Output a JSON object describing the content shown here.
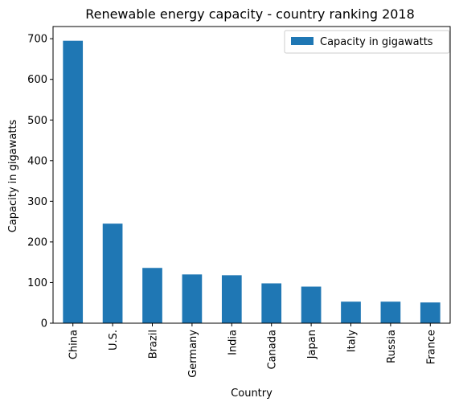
{
  "chart_data": {
    "type": "bar",
    "title": "Renewable energy capacity - country ranking 2018",
    "xlabel": "Country",
    "ylabel": "Capacity in gigawatts",
    "categories": [
      "China",
      "U.S.",
      "Brazil",
      "Germany",
      "India",
      "Canada",
      "Japan",
      "Italy",
      "Russia",
      "France"
    ],
    "series": [
      {
        "name": "Capacity in gigawatts",
        "color": "#1f77b4",
        "values": [
          695,
          245,
          136,
          120,
          118,
          98,
          90,
          53,
          53,
          51
        ]
      }
    ],
    "ylim": [
      0,
      730
    ],
    "yticks": [
      0,
      100,
      200,
      300,
      400,
      500,
      600,
      700
    ],
    "grid": false,
    "legend_position": "top-right"
  }
}
